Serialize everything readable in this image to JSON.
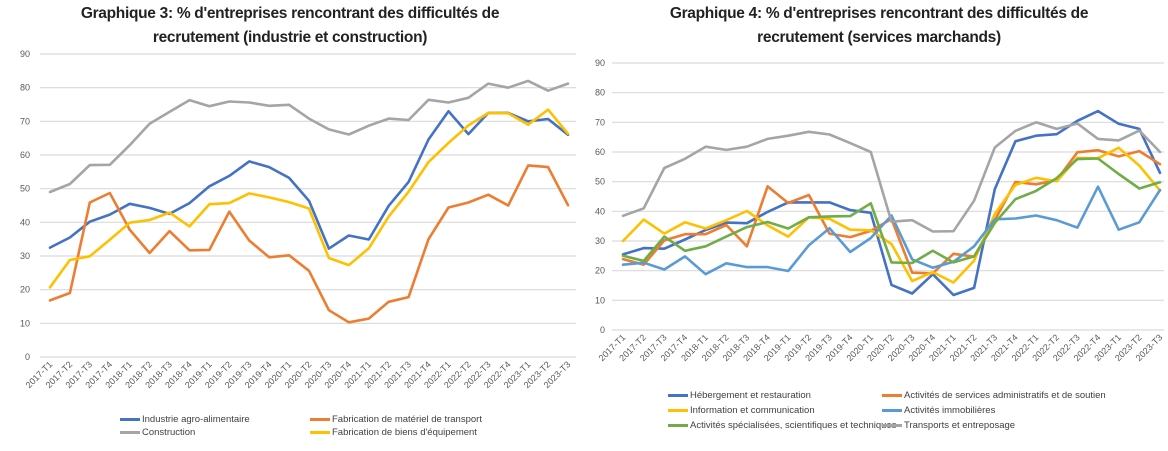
{
  "chart_data": [
    {
      "id": "chart3",
      "type": "line",
      "title_line1": "Graphique 3: % d'entreprises rencontrant des difficultés de",
      "title_line2": "recrutement (industrie et construction)",
      "xlabel": "",
      "ylabel": "",
      "ylim": [
        0,
        90
      ],
      "yticks": [
        0,
        10,
        20,
        30,
        40,
        50,
        60,
        70,
        80,
        90
      ],
      "grid": true,
      "legend_position": "bottom",
      "categories": [
        "2017-T1",
        "2017-T2",
        "2017-T3",
        "2017-T4",
        "2018-T1",
        "2018-T2",
        "2018-T3",
        "2018-T4",
        "2019-T1",
        "2019-T2",
        "2019-T3",
        "2019-T4",
        "2020-T1",
        "2020-T2",
        "2020-T3",
        "2020-T4",
        "2021-T1",
        "2021-T2",
        "2021-T3",
        "2021-T4",
        "2022-T1",
        "2022-T2",
        "2022-T3",
        "2022-T4",
        "2023-T1",
        "2023-T2",
        "2023-T3"
      ],
      "series": [
        {
          "name": "Industrie agro-alimentaire",
          "color": "#4472C4",
          "values": [
            32.5,
            35.5,
            40.2,
            42.3,
            45.5,
            44.3,
            42.5,
            45.7,
            50.7,
            53.8,
            58.1,
            56.4,
            53.2,
            46.4,
            32.2,
            36.1,
            34.9,
            44.9,
            52.0,
            64.6,
            73.0,
            66.2,
            72.5,
            72.5,
            70.0,
            70.7,
            66.0
          ]
        },
        {
          "name": "Fabrication de matériel de transport",
          "color": "#ED7D31",
          "values": [
            16.8,
            19.0,
            45.9,
            48.7,
            37.8,
            30.9,
            37.4,
            31.7,
            31.8,
            43.2,
            34.6,
            29.6,
            30.2,
            25.6,
            13.9,
            10.3,
            11.4,
            16.4,
            17.8,
            35.0,
            44.4,
            45.9,
            48.2,
            45.0,
            56.9,
            56.4,
            45.1
          ]
        },
        {
          "name": "Construction",
          "color": "#A5A5A5",
          "values": [
            49.0,
            51.4,
            57.0,
            57.1,
            62.9,
            69.3,
            72.8,
            76.3,
            74.5,
            75.9,
            75.6,
            74.6,
            74.9,
            70.8,
            67.6,
            66.1,
            68.7,
            70.8,
            70.4,
            76.4,
            75.6,
            77.0,
            81.2,
            80.0,
            82.0,
            79.1,
            81.2
          ]
        },
        {
          "name": "Fabrication de biens d'équipement",
          "color": "#FFC000",
          "values": [
            20.7,
            28.8,
            29.9,
            34.8,
            39.9,
            40.7,
            42.9,
            38.8,
            45.4,
            45.7,
            48.6,
            47.4,
            46.0,
            44.1,
            29.4,
            27.3,
            32.3,
            41.7,
            49.1,
            57.9,
            63.6,
            68.8,
            72.5,
            72.4,
            69.0,
            73.5,
            66.3
          ]
        }
      ]
    },
    {
      "id": "chart4",
      "type": "line",
      "title_line1": "Graphique 4: % d'entreprises rencontrant des difficultés de",
      "title_line2": "recrutement (services marchands)",
      "xlabel": "",
      "ylabel": "",
      "ylim": [
        0,
        90
      ],
      "yticks": [
        0,
        10,
        20,
        30,
        40,
        50,
        60,
        70,
        80,
        90
      ],
      "grid": true,
      "legend_position": "bottom",
      "categories": [
        "2017-T1",
        "2017-T2",
        "2017-T3",
        "2017-T4",
        "2018-T1",
        "2018-T2",
        "2018-T3",
        "2018-T4",
        "2019-T1",
        "2019-T2",
        "2019-T3",
        "2019-T4",
        "2020-T1",
        "2020-T2",
        "2020-T3",
        "2020-T4",
        "2021-T1",
        "2021-T2",
        "2021-T3",
        "2021-T4",
        "2022-T1",
        "2022-T2",
        "2022-T3",
        "2022-T4",
        "2023-T1",
        "2023-T2",
        "2023-T3"
      ],
      "series": [
        {
          "name": "Hébergement et restauration",
          "color": "#4472C4",
          "values": [
            25.5,
            27.6,
            27.4,
            30.5,
            33.7,
            36.2,
            36.0,
            39.8,
            43.0,
            43.0,
            43.0,
            40.4,
            39.5,
            15.2,
            12.3,
            18.8,
            11.8,
            14.2,
            47.5,
            63.6,
            65.5,
            66.0,
            70.5,
            73.8,
            69.5,
            67.8,
            53.0
          ]
        },
        {
          "name": "Activités de services administratifs et de soutien",
          "color": "#ED7D31",
          "values": [
            23.9,
            22.0,
            30.2,
            32.3,
            32.3,
            35.4,
            28.2,
            48.4,
            42.8,
            45.5,
            32.5,
            31.3,
            33.4,
            37.4,
            19.3,
            19.1,
            25.7,
            24.7,
            37.0,
            49.9,
            49.1,
            50.5,
            59.9,
            60.6,
            58.5,
            60.3,
            55.9
          ]
        },
        {
          "name": "Information et communication",
          "color": "#FFC000",
          "values": [
            30.0,
            37.2,
            32.5,
            36.3,
            34.2,
            37.0,
            40.1,
            35.3,
            31.5,
            38.0,
            37.5,
            33.8,
            33.6,
            29.0,
            16.5,
            19.5,
            16.0,
            23.4,
            39.1,
            48.9,
            51.3,
            50.1,
            58.0,
            57.9,
            61.4,
            55.4,
            47.0
          ]
        },
        {
          "name": "Activités immobilières",
          "color": "#5B9BD5",
          "values": [
            22.0,
            22.7,
            20.4,
            24.8,
            18.8,
            22.5,
            21.2,
            21.2,
            19.9,
            28.6,
            34.3,
            26.3,
            31.0,
            38.6,
            23.8,
            21.0,
            23.0,
            28.2,
            37.3,
            37.6,
            38.6,
            37.0,
            34.5,
            48.3,
            33.8,
            36.3,
            47.2
          ]
        },
        {
          "name": "Activités spécialisées, scientifiques et techniques",
          "color": "#70AD47",
          "values": [
            25.0,
            23.3,
            31.5,
            26.7,
            28.2,
            31.5,
            34.7,
            36.4,
            34.2,
            38.0,
            38.3,
            38.4,
            42.7,
            22.8,
            22.6,
            26.7,
            22.8,
            24.8,
            36.1,
            44.1,
            46.9,
            51.2,
            57.6,
            57.8,
            52.6,
            47.7,
            49.8
          ]
        },
        {
          "name": "Transports et entreposage",
          "color": "#A5A5A5",
          "values": [
            38.5,
            41.0,
            54.6,
            57.7,
            61.8,
            60.7,
            61.8,
            64.4,
            65.5,
            66.8,
            65.9,
            63.0,
            60.0,
            36.5,
            37.0,
            33.2,
            33.3,
            43.6,
            61.5,
            67.1,
            70.0,
            67.8,
            69.6,
            64.4,
            63.9,
            67.2,
            60.0
          ]
        }
      ]
    }
  ]
}
